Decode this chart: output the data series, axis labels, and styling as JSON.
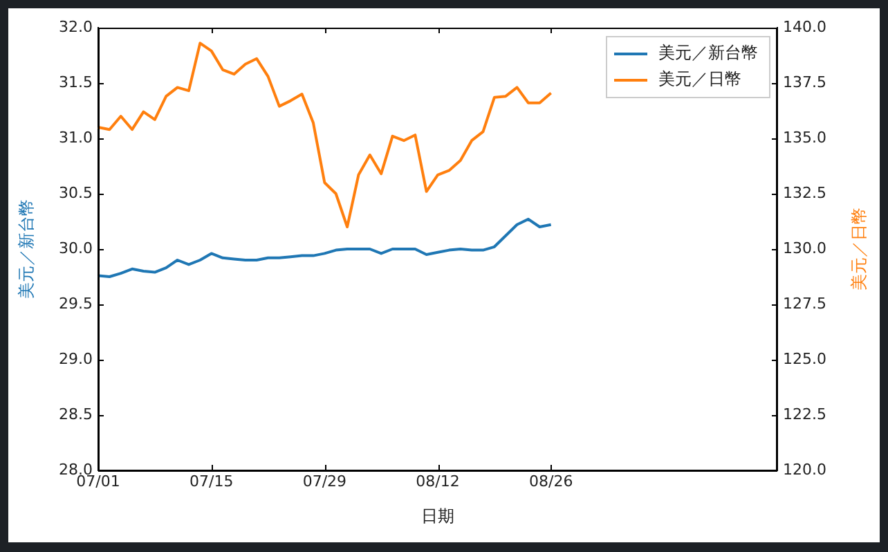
{
  "chart_data": {
    "type": "line",
    "xlabel": "日期",
    "ylabel": "美元／新台幣",
    "y2label": "美元／日幣",
    "categories": [
      "07/01",
      null,
      null,
      null,
      null,
      null,
      null,
      null,
      null,
      null,
      "07/15",
      null,
      null,
      null,
      null,
      null,
      null,
      null,
      null,
      null,
      "07/29",
      null,
      null,
      null,
      null,
      null,
      null,
      null,
      null,
      null,
      "08/12",
      null,
      null,
      null,
      null,
      null,
      null,
      null,
      null,
      null,
      "08/26",
      null,
      null,
      null,
      null,
      null,
      null,
      null,
      null,
      null,
      null,
      null,
      null,
      null,
      null,
      null,
      null,
      null,
      null,
      null,
      null
    ],
    "ylim": [
      28,
      32
    ],
    "yticks": [
      {
        "value": 28,
        "label": "28.0"
      },
      {
        "value": 28.5,
        "label": "28.5"
      },
      {
        "value": 29,
        "label": "29.0"
      },
      {
        "value": 29.5,
        "label": "29.5"
      },
      {
        "value": 30,
        "label": "30.0"
      },
      {
        "value": 30.5,
        "label": "30.5"
      },
      {
        "value": 31,
        "label": "31.0"
      },
      {
        "value": 31.5,
        "label": "31.5"
      },
      {
        "value": 32,
        "label": "32.0"
      }
    ],
    "y2lim": [
      120,
      140
    ],
    "y2ticks": [
      {
        "value": 120,
        "label": "120.0"
      },
      {
        "value": 122.5,
        "label": "122.5"
      },
      {
        "value": 125,
        "label": "125.0"
      },
      {
        "value": 127.5,
        "label": "127.5"
      },
      {
        "value": 130,
        "label": "130.0"
      },
      {
        "value": 132.5,
        "label": "132.5"
      },
      {
        "value": 135,
        "label": "135.0"
      },
      {
        "value": 137.5,
        "label": "137.5"
      },
      {
        "value": 140,
        "label": "140.0"
      }
    ],
    "series": [
      {
        "name": "美元／新台幣",
        "color": "#1f77b4",
        "values": [
          29.76,
          29.75,
          29.78,
          29.82,
          29.8,
          29.79,
          29.83,
          29.9,
          29.86,
          29.9,
          29.96,
          29.92,
          29.91,
          29.9,
          29.9,
          29.92,
          29.92,
          29.93,
          29.94,
          29.94,
          29.96,
          29.99,
          30.0,
          30.0,
          30.0,
          29.96,
          30.0,
          30.0,
          30.0,
          29.95,
          29.97,
          29.99,
          30.0,
          29.99,
          29.99,
          30.02,
          30.12,
          30.22,
          30.27,
          30.2,
          30.22,
          null,
          null,
          null,
          null,
          null,
          null,
          null,
          null,
          null,
          null,
          null,
          null,
          null,
          null,
          null,
          null,
          null,
          null,
          null,
          null
        ]
      },
      {
        "name": "美元／日幣",
        "color": "#ff7f0e",
        "axis": "y2",
        "values": [
          135.5,
          135.4,
          136.0,
          135.4,
          136.2,
          135.85,
          136.9,
          137.3,
          137.15,
          139.3,
          138.95,
          138.1,
          137.9,
          138.35,
          138.6,
          137.8,
          136.45,
          136.7,
          137.0,
          135.7,
          133.0,
          132.5,
          131.0,
          133.35,
          134.25,
          133.4,
          135.1,
          134.9,
          135.15,
          132.6,
          133.35,
          133.55,
          134.0,
          134.9,
          135.3,
          136.85,
          136.9,
          137.3,
          136.6,
          136.6,
          137.05,
          null,
          null,
          null,
          null,
          null,
          null,
          null,
          null,
          null,
          null,
          null,
          null,
          null,
          null,
          null,
          null,
          null,
          null,
          null,
          null
        ]
      }
    ],
    "legend": "top right",
    "grid": false,
    "marker": "none",
    "line_style": "solid"
  }
}
